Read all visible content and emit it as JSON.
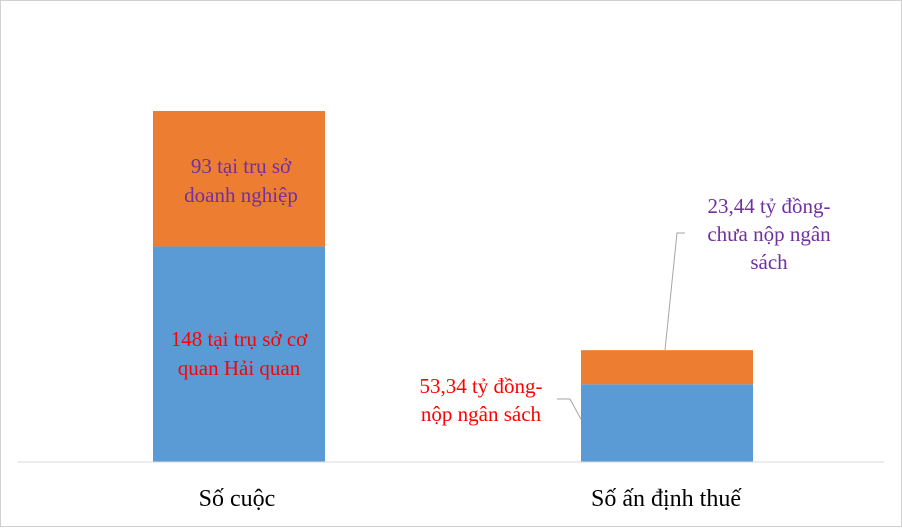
{
  "chart_data": {
    "type": "bar",
    "stacked": true,
    "categories": [
      "Số cuộc",
      "Số ấn định thuế"
    ],
    "series": [
      {
        "values": [
          148,
          53.34
        ]
      },
      {
        "values": [
          93,
          23.44
        ]
      }
    ],
    "data_labels": [
      [
        "148 tại trụ sở cơ",
        "quan Hải quan"
      ],
      [
        "93 tại trụ sở",
        "doanh nghiệp"
      ],
      [
        "53,34 tỷ đồng-",
        "nộp ngân sách"
      ],
      [
        "23,44 tỷ đồng-",
        "chưa nộp ngân",
        "sách"
      ]
    ],
    "colors": {
      "series_base": "#5b9bd5",
      "series_top": "#ed7d31",
      "label_red": "#ff0000",
      "label_purple": "#7030a0",
      "axis": "#d9d9d9",
      "leader": "#a6a6a6",
      "text": "#000000"
    },
    "grid": false,
    "legend": "none"
  }
}
